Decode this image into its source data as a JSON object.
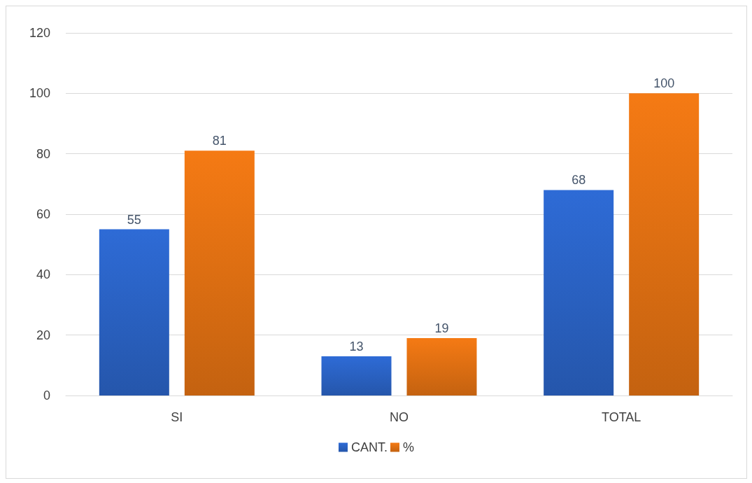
{
  "chart_data": {
    "type": "bar",
    "categories": [
      "SI",
      "NO",
      "TOTAL"
    ],
    "series": [
      {
        "name": "CANT.",
        "color": "#2e6bd6",
        "values": [
          55,
          13,
          68
        ]
      },
      {
        "name": "%",
        "color": "#f57a14",
        "values": [
          81,
          19,
          100
        ]
      }
    ],
    "ylim": [
      0,
      120
    ],
    "yticks": [
      0,
      20,
      40,
      60,
      80,
      100,
      120
    ],
    "grid": "y",
    "legend": "bottom",
    "data_labels": true
  }
}
